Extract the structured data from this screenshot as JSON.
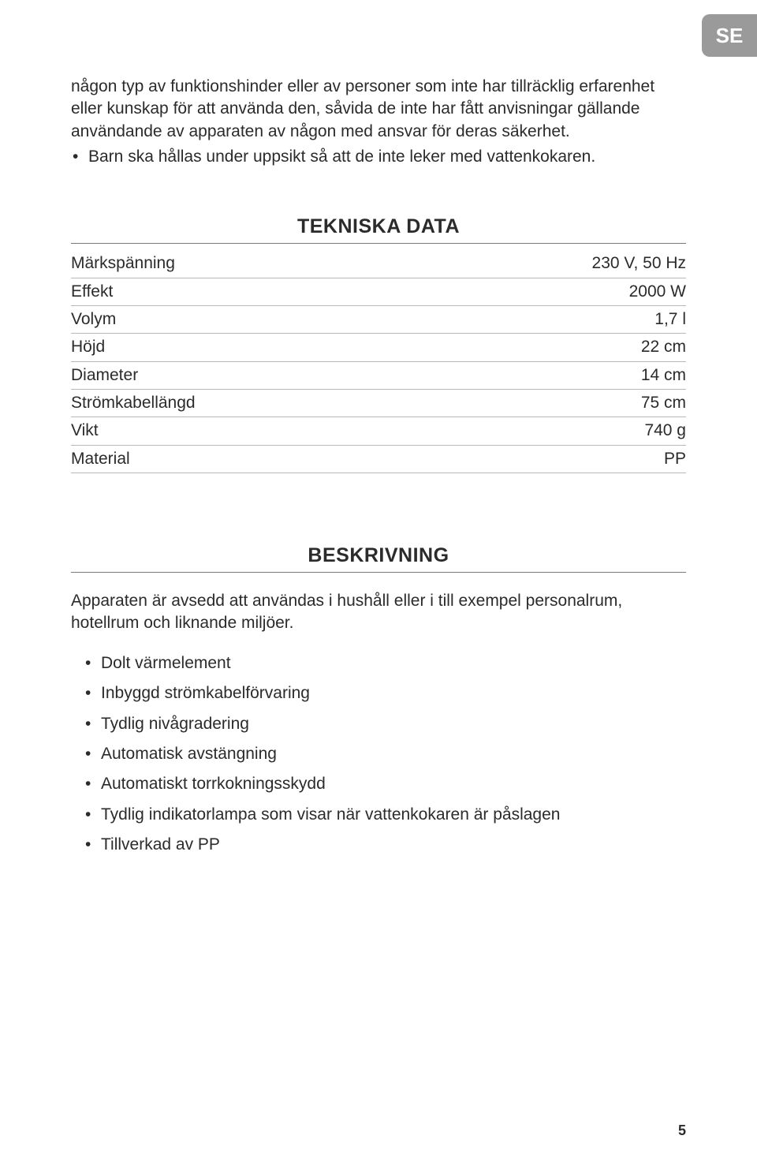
{
  "lang_tab": "SE",
  "intro_paragraph": "någon typ av funktionshinder eller av personer som inte har tillräcklig erfarenhet eller kunskap för att använda den, såvida de inte har fått anvisningar gällande användande av apparaten av någon med ansvar för deras säkerhet.",
  "intro_bullets": [
    "Barn ska hållas under uppsikt så att de inte leker med vattenkokaren."
  ],
  "sections": {
    "tech": {
      "heading": "TEKNISKA DATA",
      "rows": [
        {
          "label": "Märkspänning",
          "value": "230 V, 50 Hz"
        },
        {
          "label": "Effekt",
          "value": "2000 W"
        },
        {
          "label": "Volym",
          "value": "1,7 l"
        },
        {
          "label": "Höjd",
          "value": "22 cm"
        },
        {
          "label": "Diameter",
          "value": "14 cm"
        },
        {
          "label": "Strömkabellängd",
          "value": "75 cm"
        },
        {
          "label": "Vikt",
          "value": "740 g"
        },
        {
          "label": "Material",
          "value": "PP"
        }
      ]
    },
    "desc": {
      "heading": "BESKRIVNING",
      "paragraph": "Apparaten är avsedd att användas i hushåll eller i till exempel personalrum, hotellrum och liknande miljöer.",
      "features": [
        "Dolt värmelement",
        "Inbyggd strömkabelförvaring",
        "Tydlig nivågradering",
        "Automatisk avstängning",
        "Automatiskt torrkokningsskydd",
        "Tydlig indikatorlampa som visar när vattenkokaren är påslagen",
        "Tillverkad av PP"
      ]
    }
  },
  "page_number": "5",
  "colors": {
    "tab_bg": "#9a9a9a",
    "tab_text": "#ffffff",
    "rule": "#7a7a7a",
    "row_rule": "#b8b8b8",
    "text": "#2b2b2b"
  }
}
